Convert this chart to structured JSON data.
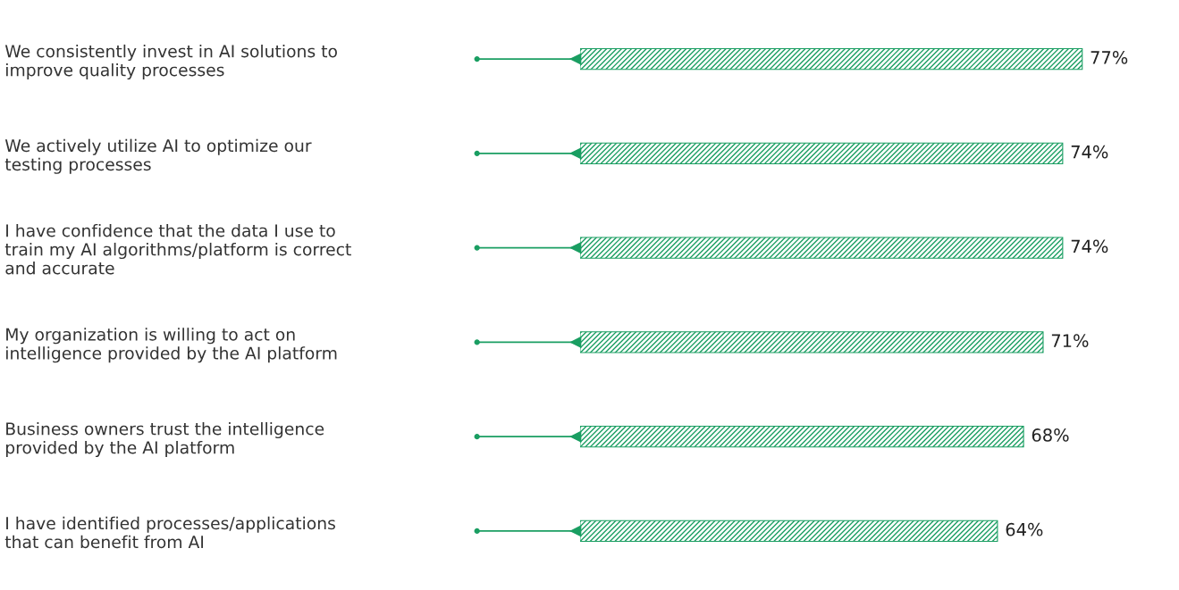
{
  "chart_data": {
    "type": "bar",
    "orientation": "horizontal",
    "categories": [
      "We consistently invest in AI solutions to\nimprove quality processes",
      "We actively utilize AI to optimize our\ntesting processes",
      "I have confidence that the data I use to\ntrain my AI algorithms/platform is correct\nand accurate",
      "My organization is willing to act on\nintelligence provided by the AI platform",
      "Business owners trust the intelligence\nprovided by the AI platform",
      "I have identified processes/applications\nthat can benefit from AI"
    ],
    "values": [
      77,
      74,
      74,
      71,
      68,
      64
    ],
    "value_labels": [
      "77%",
      "74%",
      "74%",
      "71%",
      "68%",
      "64%"
    ],
    "color": "#1a9e62",
    "tick_labels": "y",
    "grid": false,
    "legend": false
  }
}
